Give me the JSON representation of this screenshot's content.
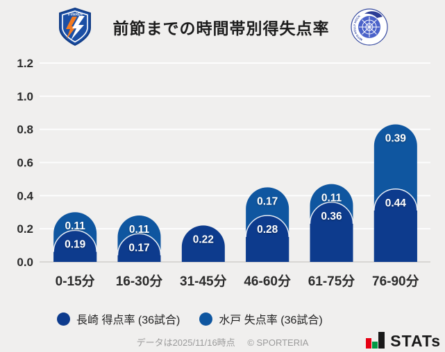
{
  "header": {
    "title": "前節までの時間帯別得失点率",
    "left_logo_label": "V-VAREN",
    "right_logo_label": "MITO HOLLY HOCK"
  },
  "chart_data": {
    "type": "bar",
    "stacked": true,
    "title": "前節までの時間帯別得失点率",
    "categories": [
      "0-15分",
      "16-30分",
      "31-45分",
      "46-60分",
      "61-75分",
      "76-90分"
    ],
    "series": [
      {
        "name": "長崎 得点率 (36試合)",
        "color": "#0d3b8d",
        "values": [
          0.19,
          0.17,
          0.22,
          0.28,
          0.36,
          0.44
        ]
      },
      {
        "name": "水戸 失点率 (36試合)",
        "color": "#0f56a0",
        "values": [
          0.11,
          0.11,
          0,
          0.17,
          0.11,
          0.39
        ]
      }
    ],
    "xlabel": "",
    "ylabel": "",
    "ylim": [
      0,
      1.2
    ],
    "ytick_step": 0.2,
    "yticks": [
      "0.0",
      "0.2",
      "0.4",
      "0.6",
      "0.8",
      "1.0",
      "1.2"
    ],
    "grid": true,
    "legend_position": "bottom"
  },
  "footer": {
    "note": "データは2025/11/16時点",
    "copyright": "© SPORTERIA",
    "logo_text": "STATs"
  },
  "colors": {
    "background": "#f0efee",
    "gridline": "#fdfdfd",
    "baseline": "#d8d6d3",
    "axis_text": "#2b2b2b",
    "value_text": "#ffffff",
    "nagasaki_bar": "#0d3b8d",
    "mito_bar": "#0f56a0"
  }
}
